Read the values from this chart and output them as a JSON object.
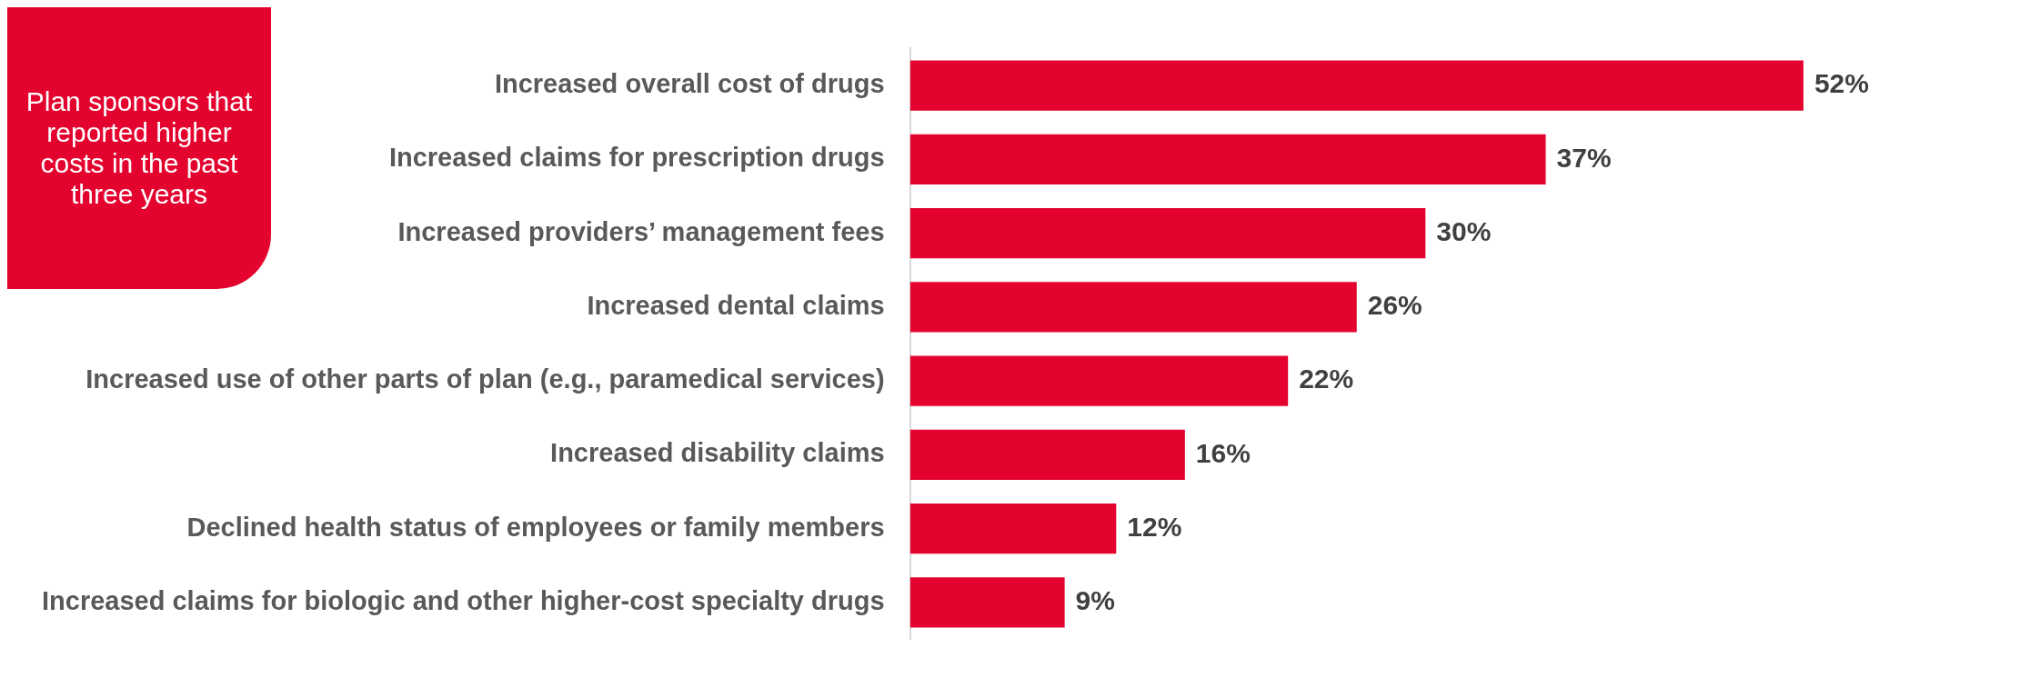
{
  "chart_data": {
    "type": "bar",
    "orientation": "horizontal",
    "title": "Plan sponsors that reported higher costs in the past three years",
    "categories": [
      "Increased overall cost of drugs",
      "Increased claims for prescription drugs",
      "Increased providers’ management fees",
      "Increased dental claims",
      "Increased use of other parts of plan (e.g., paramedical services)",
      "Increased disability claims",
      "Declined health status of employees or family members",
      "Increased claims for biologic and other higher-cost specialty drugs"
    ],
    "values": [
      52,
      37,
      30,
      26,
      22,
      16,
      12,
      9
    ],
    "value_labels": [
      "52%",
      "37%",
      "30%",
      "26%",
      "22%",
      "16%",
      "12%",
      "9%"
    ],
    "color": "#e4032e",
    "tick_labels": "y",
    "grid": false,
    "legend": false
  }
}
